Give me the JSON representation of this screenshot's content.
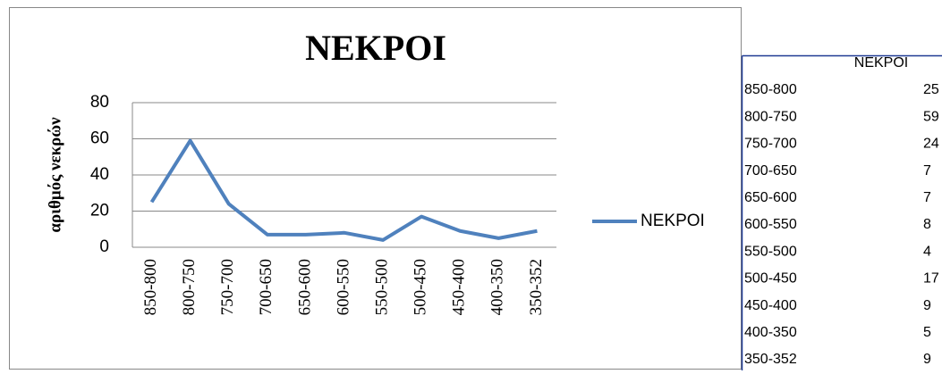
{
  "chart_data": {
    "type": "line",
    "title": "NEKPOI",
    "y_label": "αριθμός νεκρών",
    "categories": [
      "850-800",
      "800-750",
      "750-700",
      "700-650",
      "650-600",
      "600-550",
      "550-500",
      "500-450",
      "450-400",
      "400-350",
      "350-352"
    ],
    "series": [
      {
        "name": "NEKPOI",
        "color": "#4f81bd",
        "values": [
          25,
          59,
          24,
          7,
          7,
          8,
          4,
          17,
          9,
          5,
          9
        ]
      }
    ],
    "ylim": [
      0,
      80
    ],
    "yticks": [
      0,
      20,
      40,
      60,
      80
    ],
    "grid": true,
    "legend": "right"
  }
}
